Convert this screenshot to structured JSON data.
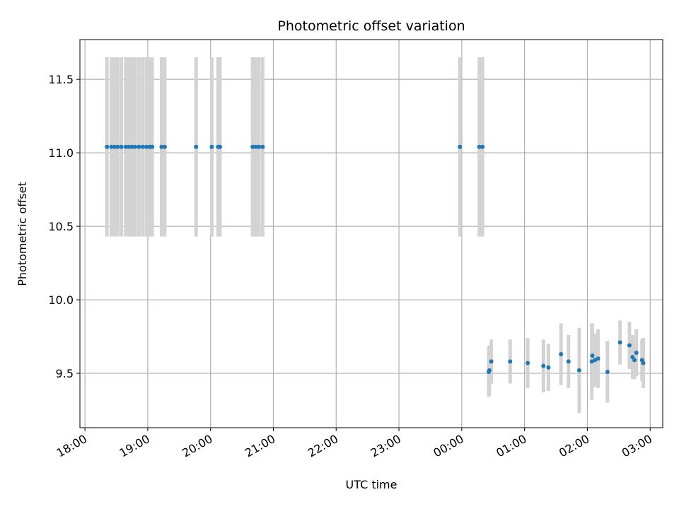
{
  "chart_data": {
    "type": "scatter",
    "title": "Photometric offset variation",
    "xlabel": "UTC time",
    "ylabel": "Photometric offset",
    "x_unit": "hours from 18:00 UTC",
    "xlim": [
      -0.08,
      9.2
    ],
    "ylim": [
      9.13,
      11.77
    ],
    "grid": true,
    "x_ticks": [
      0,
      1,
      2,
      3,
      4,
      5,
      6,
      7,
      8,
      9
    ],
    "x_tick_labels": [
      "18:00",
      "19:00",
      "20:00",
      "21:00",
      "22:00",
      "23:00",
      "00:00",
      "01:00",
      "02:00",
      "03:00"
    ],
    "y_ticks": [
      9.5,
      10.0,
      10.5,
      11.0,
      11.5
    ],
    "y_tick_labels": [
      "9.5",
      "10.0",
      "10.5",
      "11.0",
      "11.5"
    ],
    "colors": {
      "marker": "#1f77b4",
      "errorbar": "#d3d3d3",
      "grid": "#b0b0b0"
    },
    "series": [
      {
        "x": [
          0.35,
          0.42,
          0.47,
          0.52,
          0.58,
          0.65,
          0.7,
          0.75,
          0.8,
          0.86,
          0.92,
          0.98,
          1.03,
          1.07,
          1.22,
          1.27,
          1.77,
          2.02,
          2.12,
          2.15,
          2.67,
          2.72,
          2.77,
          2.83,
          5.97,
          6.28,
          6.33
        ],
        "y": [
          11.04,
          11.04,
          11.04,
          11.04,
          11.04,
          11.04,
          11.04,
          11.04,
          11.04,
          11.04,
          11.04,
          11.04,
          11.04,
          11.04,
          11.04,
          11.04,
          11.04,
          11.04,
          11.04,
          11.04,
          11.04,
          11.04,
          11.04,
          11.04,
          11.04,
          11.04,
          11.04
        ],
        "yerr": [
          0.61,
          0.61,
          0.61,
          0.61,
          0.61,
          0.61,
          0.61,
          0.61,
          0.61,
          0.61,
          0.61,
          0.61,
          0.61,
          0.61,
          0.61,
          0.61,
          0.61,
          0.61,
          0.61,
          0.61,
          0.61,
          0.61,
          0.61,
          0.61,
          0.61,
          0.61,
          0.61
        ]
      },
      {
        "x": [
          6.43,
          6.44,
          6.47,
          6.77,
          7.05,
          7.3,
          7.38,
          7.58,
          7.7,
          7.87,
          8.07,
          8.08,
          8.12,
          8.17,
          8.32,
          8.52,
          8.67,
          8.72,
          8.75,
          8.78,
          8.87,
          8.89
        ],
        "y": [
          9.51,
          9.52,
          9.58,
          9.58,
          9.57,
          9.55,
          9.54,
          9.63,
          9.58,
          9.52,
          9.58,
          9.62,
          9.59,
          9.6,
          9.51,
          9.71,
          9.69,
          9.61,
          9.59,
          9.64,
          9.59,
          9.57
        ],
        "yerr": [
          0.17,
          0.17,
          0.15,
          0.15,
          0.17,
          0.18,
          0.16,
          0.21,
          0.18,
          0.29,
          0.26,
          0.22,
          0.18,
          0.2,
          0.21,
          0.15,
          0.16,
          0.15,
          0.13,
          0.16,
          0.14,
          0.17
        ]
      }
    ]
  }
}
